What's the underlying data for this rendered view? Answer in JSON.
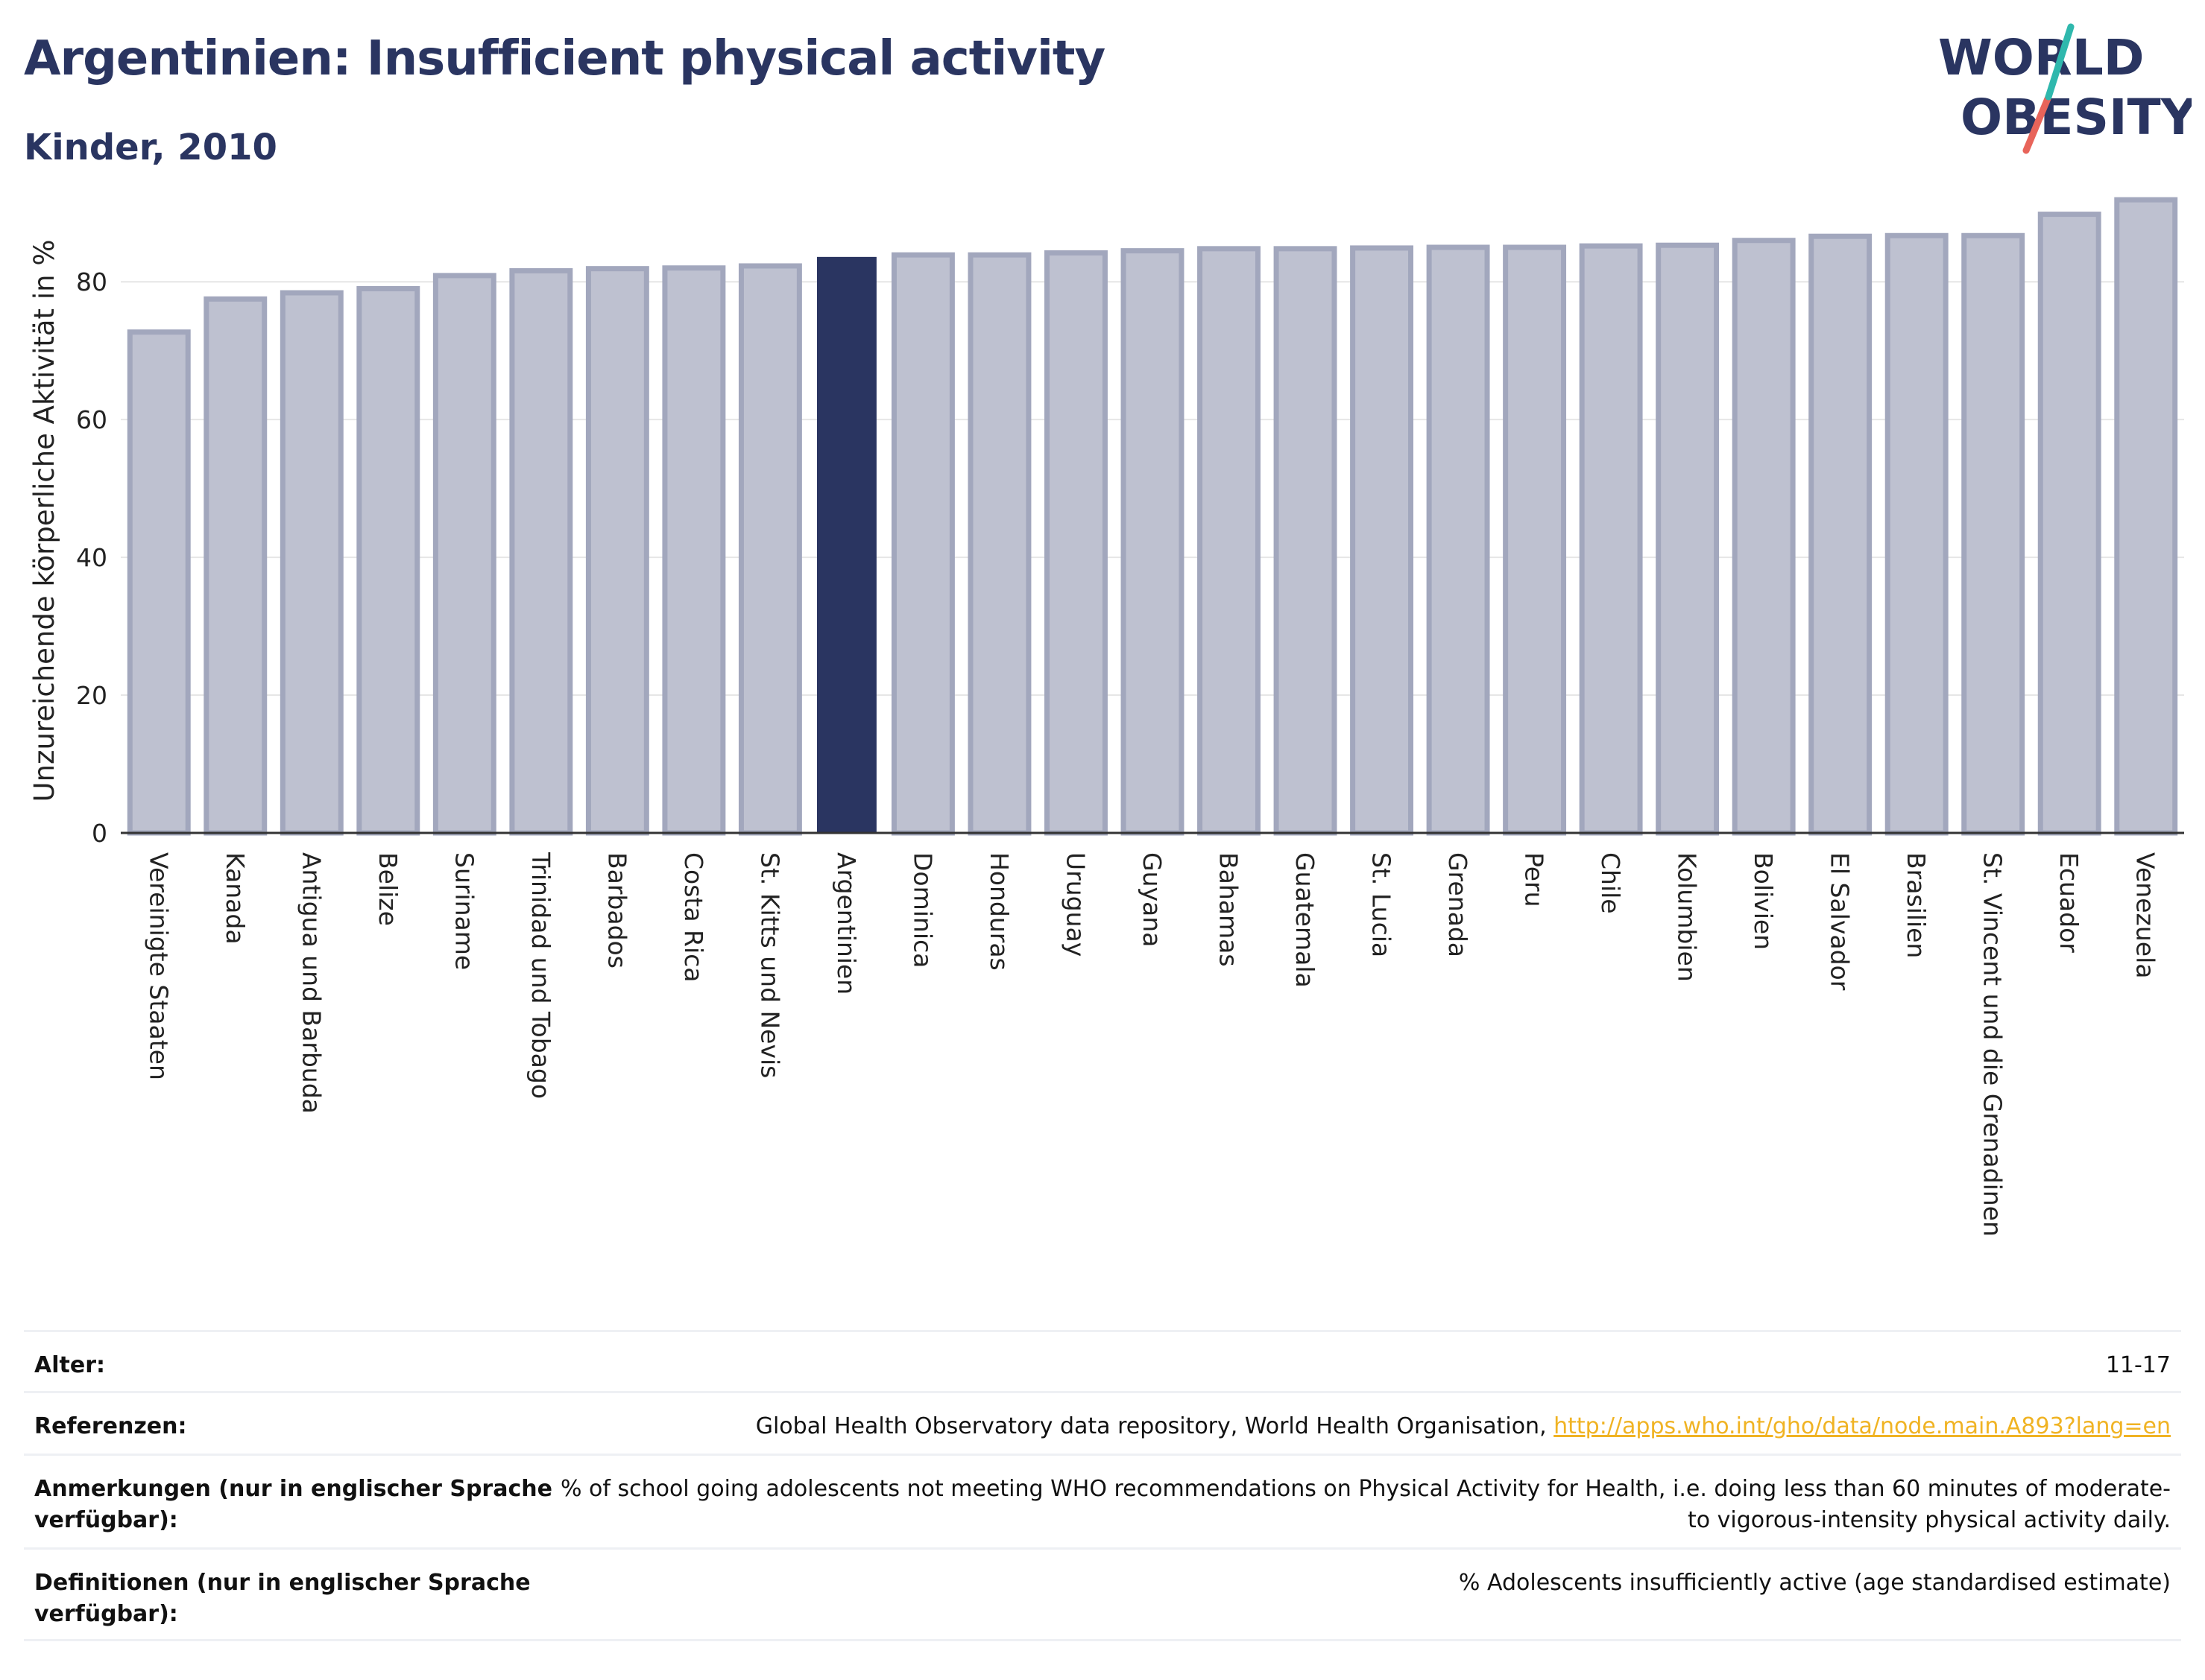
{
  "header": {
    "title": "Argentinien: Insufficient physical activity",
    "subtitle": "Kinder, 2010"
  },
  "logo": {
    "line1": "WORLD",
    "line2": "OBESITY"
  },
  "colors": {
    "highlight": "#2a3561",
    "bar_fill": "#bec1d0",
    "bar_edge": "#a2a7bd",
    "title": "#2a3561",
    "link": "#f0b323",
    "logo_teal": "#2fb8ad",
    "logo_coral": "#e8645a"
  },
  "chart_data": {
    "type": "bar",
    "title": "Argentinien: Insufficient physical activity",
    "subtitle": "Kinder, 2010",
    "ylabel": "Unzureichende körperliche Aktivität in %",
    "xlabel": "",
    "ylim": [
      0,
      93
    ],
    "yticks": [
      0,
      20,
      40,
      60,
      80
    ],
    "grid": true,
    "highlight": "Argentinien",
    "categories": [
      "Vereinigte Staaten",
      "Kanada",
      "Antigua und Barbuda",
      "Belize",
      "Suriname",
      "Trinidad und Tobago",
      "Barbados",
      "Costa Rica",
      "St. Kitts und Nevis",
      "Argentinien",
      "Dominica",
      "Honduras",
      "Uruguay",
      "Guyana",
      "Bahamas",
      "Guatemala",
      "St. Lucia",
      "Grenada",
      "Peru",
      "Chile",
      "Kolumbien",
      "Bolivien",
      "El Salvador",
      "Brasilien",
      "St. Vincent und die Grenadinen",
      "Ecuador",
      "Venezuela"
    ],
    "values": [
      72.7,
      77.5,
      78.4,
      79.0,
      80.9,
      81.6,
      81.9,
      82.0,
      82.3,
      83.5,
      83.9,
      83.9,
      84.2,
      84.5,
      84.8,
      84.8,
      84.9,
      85.0,
      85.0,
      85.2,
      85.3,
      86.0,
      86.6,
      86.7,
      86.7,
      89.8,
      91.9
    ]
  },
  "info": [
    {
      "label": "Alter:",
      "value": "11-17"
    },
    {
      "label": "Referenzen:",
      "value": "Global Health Observatory data repository, World Health Organisation, ",
      "link": "http://apps.who.int/gho/data/node.main.A893?lang=en"
    },
    {
      "label": "Anmerkungen (nur in englischer Sprache verfügbar):",
      "value": "% of school going adolescents not meeting WHO recommendations on Physical Activity for Health, i.e. doing less than 60 minutes of moderate- to vigorous-intensity physical activity daily."
    },
    {
      "label": "Definitionen (nur in englischer Sprache verfügbar):",
      "value": "% Adolescents insufficiently active (age standardised estimate)"
    }
  ]
}
